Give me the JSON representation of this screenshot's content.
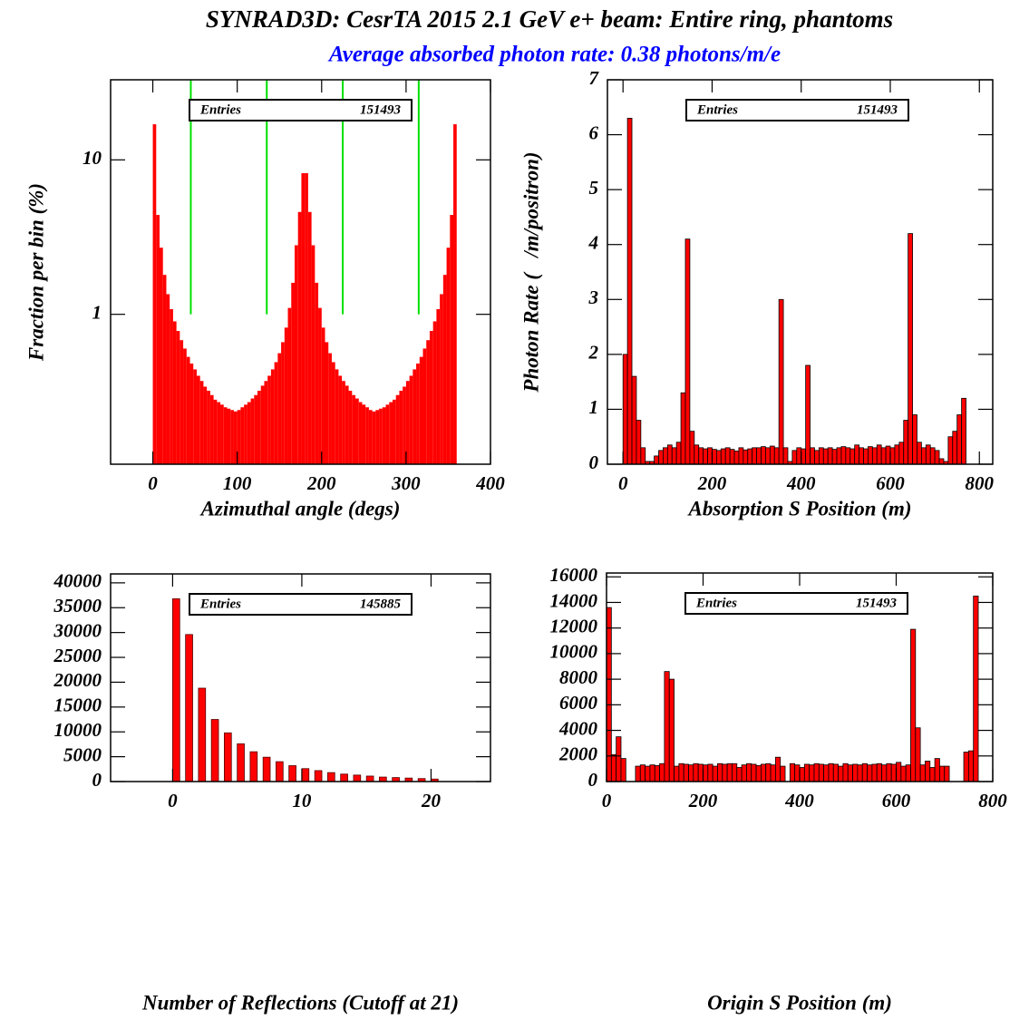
{
  "title": "SYNRAD3D: CesrTA 2015 2.1 GeV e+ beam: Entire ring, phantoms",
  "subtitle": "Average absorbed photon rate: 0.38 photons/m/e",
  "chart_data": [
    {
      "type": "histogram",
      "xlabel": "Azimuthal angle (degs)",
      "ylabel": "Fraction per bin (%)",
      "xlim": [
        -50,
        400
      ],
      "xticks": [
        0,
        100,
        200,
        300,
        400
      ],
      "ylim": [
        0.107,
        33
      ],
      "yticks": [
        1,
        10
      ],
      "log_y": true,
      "color": "#ff0000",
      "stats_label": "Entries",
      "stats_value": "151493",
      "vlines": {
        "x": [
          45,
          135,
          225,
          315
        ],
        "from": 1,
        "color": "#00e000"
      },
      "bins": [
        0,
        4,
        8,
        12,
        16,
        20,
        24,
        28,
        32,
        36,
        40,
        44,
        48,
        52,
        56,
        60,
        64,
        68,
        72,
        76,
        80,
        84,
        88,
        92,
        96,
        100,
        104,
        108,
        112,
        116,
        120,
        124,
        128,
        132,
        136,
        140,
        144,
        148,
        152,
        156,
        160,
        164,
        168,
        172,
        176,
        180,
        184,
        188,
        192,
        196,
        200,
        204,
        208,
        212,
        216,
        220,
        224,
        228,
        232,
        236,
        240,
        244,
        248,
        252,
        256,
        260,
        264,
        268,
        272,
        276,
        280,
        284,
        288,
        292,
        296,
        300,
        304,
        308,
        312,
        316,
        320,
        324,
        328,
        332,
        336,
        340,
        344,
        348,
        352,
        356,
        360
      ],
      "values": [
        17,
        4.4,
        2.7,
        1.8,
        1.35,
        1.08,
        0.9,
        0.78,
        0.68,
        0.6,
        0.53,
        0.48,
        0.44,
        0.4,
        0.37,
        0.34,
        0.32,
        0.3,
        0.28,
        0.27,
        0.26,
        0.25,
        0.245,
        0.24,
        0.235,
        0.24,
        0.25,
        0.26,
        0.27,
        0.285,
        0.3,
        0.32,
        0.345,
        0.37,
        0.4,
        0.44,
        0.49,
        0.56,
        0.66,
        0.82,
        1.1,
        1.6,
        2.8,
        4.6,
        8.2,
        8.2,
        4.6,
        2.8,
        1.6,
        1.1,
        0.82,
        0.66,
        0.56,
        0.49,
        0.44,
        0.4,
        0.37,
        0.345,
        0.32,
        0.3,
        0.285,
        0.27,
        0.26,
        0.25,
        0.24,
        0.235,
        0.24,
        0.245,
        0.25,
        0.26,
        0.27,
        0.28,
        0.3,
        0.32,
        0.34,
        0.37,
        0.4,
        0.44,
        0.48,
        0.53,
        0.6,
        0.68,
        0.78,
        0.9,
        1.08,
        1.35,
        1.8,
        2.7,
        4.4,
        17
      ]
    },
    {
      "type": "histogram",
      "xlabel": "Absorption S Position (m)",
      "ylabel": "Photon Rate (   /m/positron)",
      "xlim": [
        -35,
        830
      ],
      "xticks": [
        0,
        200,
        400,
        600,
        800
      ],
      "ylim": [
        0,
        7
      ],
      "yticks": [
        0,
        1,
        2,
        3,
        4,
        5,
        6,
        7
      ],
      "log_y": false,
      "color": "#ff0000",
      "edgecolor": "#000000",
      "stats_label": "Entries",
      "stats_value": "151493",
      "bins": [
        0,
        10,
        20,
        30,
        40,
        50,
        60,
        70,
        80,
        90,
        100,
        110,
        120,
        130,
        140,
        150,
        160,
        170,
        180,
        190,
        200,
        210,
        220,
        230,
        240,
        250,
        260,
        270,
        280,
        290,
        300,
        310,
        320,
        330,
        340,
        350,
        360,
        370,
        380,
        390,
        400,
        410,
        420,
        430,
        440,
        450,
        460,
        470,
        480,
        490,
        500,
        510,
        520,
        530,
        540,
        550,
        560,
        570,
        580,
        590,
        600,
        610,
        620,
        630,
        640,
        650,
        660,
        670,
        680,
        690,
        700,
        710,
        720,
        730,
        740,
        750,
        760,
        770
      ],
      "values": [
        2.0,
        6.3,
        1.6,
        0.8,
        0.3,
        0.05,
        0.05,
        0.15,
        0.25,
        0.3,
        0.35,
        0.3,
        0.4,
        1.3,
        4.1,
        0.6,
        0.35,
        0.3,
        0.28,
        0.3,
        0.27,
        0.25,
        0.28,
        0.3,
        0.27,
        0.24,
        0.3,
        0.26,
        0.28,
        0.3,
        0.3,
        0.32,
        0.3,
        0.33,
        0.3,
        3.0,
        0.3,
        0.05,
        0.25,
        0.3,
        0.28,
        1.8,
        0.3,
        0.25,
        0.3,
        0.28,
        0.3,
        0.27,
        0.3,
        0.32,
        0.3,
        0.28,
        0.35,
        0.3,
        0.28,
        0.32,
        0.3,
        0.35,
        0.3,
        0.33,
        0.3,
        0.35,
        0.4,
        0.8,
        4.2,
        0.9,
        0.4,
        0.3,
        0.35,
        0.3,
        0.25,
        0.1,
        0.05,
        0.5,
        0.6,
        0.9,
        1.2
      ]
    },
    {
      "type": "bar",
      "xlabel": "Number of Reflections (Cutoff at 21)",
      "xlim": [
        -4.8,
        24.6
      ],
      "xticks": [
        0,
        10,
        20
      ],
      "ylim": [
        0,
        41800
      ],
      "yticks": [
        0,
        5000,
        10000,
        15000,
        20000,
        25000,
        30000,
        35000,
        40000
      ],
      "log_y": false,
      "color": "#ff0000",
      "edgecolor": "#550000",
      "stats_label": "Entries",
      "stats_value": "145885",
      "x": [
        0,
        1,
        2,
        3,
        4,
        5,
        6,
        7,
        8,
        9,
        10,
        11,
        12,
        13,
        14,
        15,
        16,
        17,
        18,
        19,
        20
      ],
      "values": [
        36800,
        29600,
        18800,
        12500,
        9800,
        7600,
        6000,
        4900,
        4000,
        3200,
        2600,
        2200,
        1800,
        1500,
        1300,
        1100,
        900,
        800,
        700,
        600,
        500
      ]
    },
    {
      "type": "histogram",
      "xlabel": "Origin S Position (m)",
      "xlim": [
        0,
        800
      ],
      "xticks": [
        0,
        200,
        400,
        600,
        800
      ],
      "ylim": [
        0,
        16300
      ],
      "yticks": [
        0,
        2000,
        4000,
        6000,
        8000,
        10000,
        12000,
        14000,
        16000
      ],
      "log_y": false,
      "color": "#ff0000",
      "edgecolor": "#000000",
      "stats_label": "Entries",
      "stats_value": "151493",
      "bins": [
        0,
        10,
        20,
        30,
        40,
        50,
        60,
        70,
        80,
        90,
        100,
        110,
        120,
        130,
        140,
        150,
        160,
        170,
        180,
        190,
        200,
        210,
        220,
        230,
        240,
        250,
        260,
        270,
        280,
        290,
        300,
        310,
        320,
        330,
        340,
        350,
        360,
        370,
        380,
        390,
        400,
        410,
        420,
        430,
        440,
        450,
        460,
        470,
        480,
        490,
        500,
        510,
        520,
        530,
        540,
        550,
        560,
        570,
        580,
        590,
        600,
        610,
        620,
        630,
        640,
        650,
        660,
        670,
        680,
        690,
        700,
        710,
        720,
        730,
        740,
        750,
        760,
        770
      ],
      "values": [
        13600,
        2100,
        3500,
        1800,
        0,
        0,
        1200,
        1300,
        1200,
        1300,
        1250,
        1400,
        8600,
        8000,
        1200,
        1400,
        1350,
        1300,
        1400,
        1350,
        1300,
        1350,
        1200,
        1400,
        1350,
        1400,
        1400,
        1100,
        1300,
        1400,
        1350,
        1250,
        1350,
        1400,
        1300,
        1900,
        1200,
        0,
        1400,
        1300,
        1100,
        1350,
        1300,
        1400,
        1350,
        1300,
        1400,
        1350,
        1200,
        1400,
        1300,
        1350,
        1300,
        1400,
        1300,
        1350,
        1400,
        1300,
        1400,
        1350,
        1500,
        1200,
        1300,
        11900,
        4200,
        1300,
        1600,
        1100,
        1800,
        1200,
        1200,
        0,
        0,
        0,
        2300,
        2400,
        14500
      ]
    }
  ]
}
